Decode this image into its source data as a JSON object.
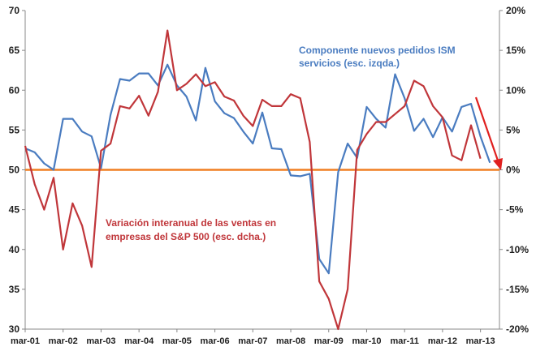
{
  "chart_data": {
    "type": "line",
    "title": "",
    "x_labels": [
      "mar-01",
      "mar-02",
      "mar-03",
      "mar-04",
      "mar-05",
      "mar-06",
      "mar-07",
      "mar-08",
      "mar-09",
      "mar-10",
      "mar-11",
      "mar-12",
      "mar-13"
    ],
    "x_start": 2001.17,
    "left_axis": {
      "ylim": [
        30,
        70
      ],
      "ticks": [
        "30",
        "35",
        "40",
        "45",
        "50",
        "55",
        "60",
        "65",
        "70"
      ]
    },
    "right_axis": {
      "ylim": [
        -20,
        20
      ],
      "ticks": [
        "-20%",
        "-15%",
        "-10%",
        "-5%",
        "0%",
        "5%",
        "10%",
        "15%",
        "20%"
      ]
    },
    "series": [
      {
        "name": "Componente nuevos pedidos ISM servicios (esc. izqda.)",
        "axis": "left",
        "color": "#4a7cc0",
        "x": [
          2001.17,
          2001.42,
          2001.67,
          2001.92,
          2002.17,
          2002.42,
          2002.67,
          2002.92,
          2003.17,
          2003.42,
          2003.67,
          2003.92,
          2004.17,
          2004.42,
          2004.67,
          2004.92,
          2005.17,
          2005.42,
          2005.67,
          2005.92,
          2006.17,
          2006.42,
          2006.67,
          2006.92,
          2007.17,
          2007.42,
          2007.67,
          2007.92,
          2008.17,
          2008.42,
          2008.67,
          2008.92,
          2009.17,
          2009.42,
          2009.67,
          2009.92,
          2010.17,
          2010.42,
          2010.67,
          2010.92,
          2011.17,
          2011.42,
          2011.67,
          2011.92,
          2012.17,
          2012.42,
          2012.67,
          2012.92,
          2013.17,
          2013.42
        ],
        "values": [
          52.7,
          52.2,
          50.8,
          50.0,
          56.4,
          56.4,
          54.8,
          54.2,
          50.2,
          56.9,
          61.4,
          61.2,
          62.1,
          62.1,
          60.6,
          63.2,
          60.6,
          59.2,
          56.2,
          62.8,
          58.6,
          57.1,
          56.5,
          54.8,
          53.3,
          57.2,
          52.7,
          52.6,
          49.3,
          49.2,
          49.5,
          38.8,
          37.0,
          49.7,
          53.3,
          51.5,
          57.9,
          56.4,
          55.3,
          62.0,
          59.0,
          54.9,
          56.4,
          54.1,
          56.6,
          54.8,
          57.9,
          58.3,
          54.2,
          50.9
        ]
      },
      {
        "name": "Variación interanual de las ventas en empresas del S&P 500 (esc. dcha.)",
        "axis": "right",
        "color": "#c0363a",
        "x": [
          2001.17,
          2001.42,
          2001.67,
          2001.92,
          2002.17,
          2002.42,
          2002.67,
          2002.92,
          2003.17,
          2003.42,
          2003.67,
          2003.92,
          2004.17,
          2004.42,
          2004.67,
          2004.92,
          2005.17,
          2005.42,
          2005.67,
          2005.92,
          2006.17,
          2006.42,
          2006.67,
          2006.92,
          2007.17,
          2007.42,
          2007.67,
          2007.92,
          2008.17,
          2008.42,
          2008.67,
          2008.92,
          2009.17,
          2009.42,
          2009.67,
          2009.92,
          2010.17,
          2010.42,
          2010.67,
          2010.92,
          2011.17,
          2011.42,
          2011.67,
          2011.92,
          2012.17,
          2012.42,
          2012.67,
          2012.92,
          2013.17
        ],
        "values": [
          3.0,
          -1.8,
          -5.0,
          -1.0,
          -10.0,
          -4.2,
          -7.0,
          -12.2,
          2.4,
          3.3,
          8.0,
          7.7,
          9.3,
          6.8,
          9.8,
          17.5,
          10.0,
          10.8,
          12.0,
          10.5,
          11.0,
          9.2,
          8.7,
          6.8,
          5.5,
          8.8,
          8.0,
          8.0,
          9.5,
          9.0,
          3.5,
          -14.0,
          -16.2,
          -20.0,
          -15.0,
          2.5,
          4.5,
          6.0,
          6.0,
          7.0,
          8.0,
          11.2,
          10.5,
          8.0,
          6.6,
          1.8,
          1.2,
          5.6,
          1.4
        ]
      }
    ],
    "reference_line": {
      "axis": "right",
      "value": 0,
      "color": "#f07f22"
    }
  },
  "annotations": {
    "blue_line1": "Componente nuevos pedidos ISM",
    "blue_line2": "servicios (esc. izqda.)",
    "red_line1": "Variación interanual de las ventas en",
    "red_line2": "empresas del S&P 500 (esc. dcha.)"
  },
  "colors": {
    "arrow": "#e0201f",
    "axis": "#888888"
  }
}
